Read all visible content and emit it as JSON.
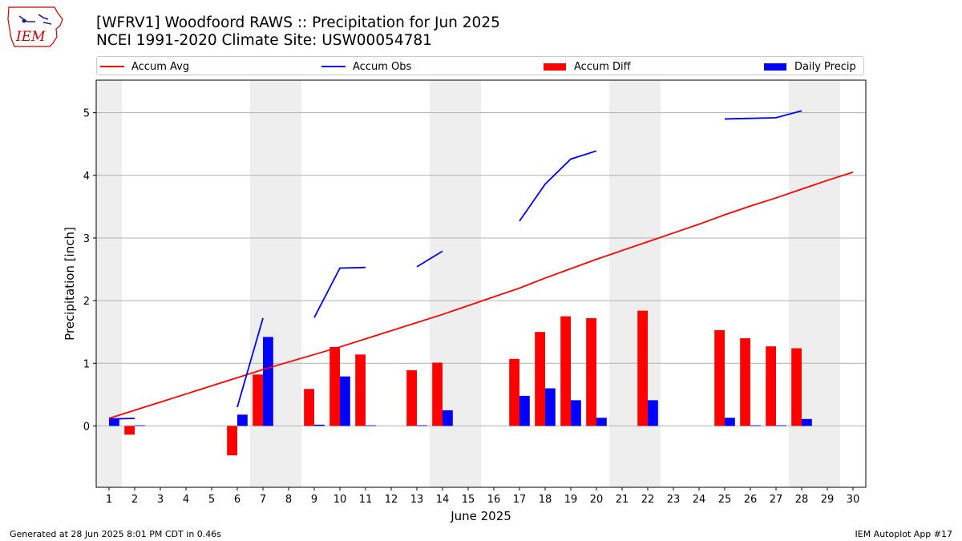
{
  "header": {
    "title_line1": "[WFRV1] Woodfoord RAWS :: Precipitation for Jun 2025",
    "title_line2": "NCEI 1991-2020 Climate Site: USW00054781"
  },
  "logo": {
    "text": "IEM",
    "color": "#cc0000",
    "icon": "iowa-state-outline-icon"
  },
  "legend": [
    {
      "label": "Accum Avg",
      "kind": "line",
      "color": "#ff0000"
    },
    {
      "label": "Accum Obs",
      "kind": "line",
      "color": "#0000ff"
    },
    {
      "label": "Accum Diff",
      "kind": "bar",
      "color": "#ff0000"
    },
    {
      "label": "Daily Precip",
      "kind": "bar",
      "color": "#0000ff"
    }
  ],
  "footer": {
    "left": "Generated at 28 Jun 2025 8:01 PM CDT in 0.46s",
    "right": "IEM Autoplot App #17"
  },
  "chart_data": {
    "type": "bar",
    "xlabel": "June 2025",
    "ylabel": "Precipitation [inch]",
    "xlim": [
      0.5,
      30.5
    ],
    "ylim": [
      -0.98,
      5.52
    ],
    "yticks": [
      0,
      1,
      2,
      3,
      4,
      5
    ],
    "days": [
      1,
      2,
      3,
      4,
      5,
      6,
      7,
      8,
      9,
      10,
      11,
      12,
      13,
      14,
      15,
      16,
      17,
      18,
      19,
      20,
      21,
      22,
      23,
      24,
      25,
      26,
      27,
      28,
      29,
      30
    ],
    "weekend_days": [
      1,
      7,
      8,
      14,
      15,
      21,
      22,
      28,
      29
    ],
    "grid": "y",
    "legend_position": "top",
    "series": [
      {
        "name": "Accum Avg",
        "type": "line",
        "color": "#ff0000",
        "x": [
          1,
          2,
          3,
          4,
          5,
          6,
          7,
          8,
          9,
          10,
          11,
          12,
          13,
          14,
          15,
          16,
          17,
          18,
          19,
          20,
          21,
          22,
          23,
          24,
          25,
          26,
          27,
          28,
          29,
          30
        ],
        "values": [
          0.12,
          0.25,
          0.38,
          0.51,
          0.64,
          0.77,
          0.9,
          1.02,
          1.14,
          1.26,
          1.39,
          1.52,
          1.65,
          1.78,
          1.92,
          2.06,
          2.2,
          2.36,
          2.51,
          2.66,
          2.8,
          2.94,
          3.08,
          3.22,
          3.37,
          3.51,
          3.64,
          3.78,
          3.92,
          4.05
        ]
      },
      {
        "name": "Accum Obs",
        "type": "line",
        "color": "#0000ff",
        "segments": [
          {
            "x": [
              1,
              2
            ],
            "values": [
              0.11,
              0.12
            ]
          },
          {
            "x": [
              6,
              7
            ],
            "values": [
              0.3,
              1.72
            ]
          },
          {
            "x": [
              9,
              10,
              11
            ],
            "values": [
              1.73,
              2.52,
              2.53
            ]
          },
          {
            "x": [
              13,
              14
            ],
            "values": [
              2.54,
              2.79
            ]
          },
          {
            "x": [
              17,
              18,
              19,
              20
            ],
            "values": [
              3.27,
              3.86,
              4.26,
              4.39
            ]
          },
          {
            "x": [
              25,
              26,
              27,
              28
            ],
            "values": [
              4.9,
              4.91,
              4.92,
              5.03
            ]
          }
        ]
      },
      {
        "name": "Accum Diff",
        "type": "bar",
        "color": "#ff0000",
        "offset": "left",
        "x": [
          2,
          6,
          7,
          9,
          10,
          11,
          13,
          14,
          17,
          18,
          19,
          20,
          22,
          25,
          26,
          27,
          28
        ],
        "values": [
          -0.14,
          -0.47,
          0.82,
          0.59,
          1.26,
          1.14,
          0.89,
          1.01,
          1.07,
          1.5,
          1.75,
          1.72,
          1.84,
          1.53,
          1.4,
          1.27,
          1.24
        ]
      },
      {
        "name": "Daily Precip",
        "type": "bar",
        "color": "#0000ff",
        "offset": "right",
        "x": [
          1,
          2,
          6,
          7,
          9,
          10,
          11,
          13,
          14,
          17,
          18,
          19,
          20,
          22,
          25,
          26,
          27,
          28
        ],
        "values": [
          0.11,
          0.01,
          0.18,
          1.42,
          0.02,
          0.79,
          0.01,
          0.01,
          0.25,
          0.48,
          0.6,
          0.41,
          0.13,
          0.41,
          0.13,
          0.01,
          0.01,
          0.11
        ]
      }
    ]
  }
}
